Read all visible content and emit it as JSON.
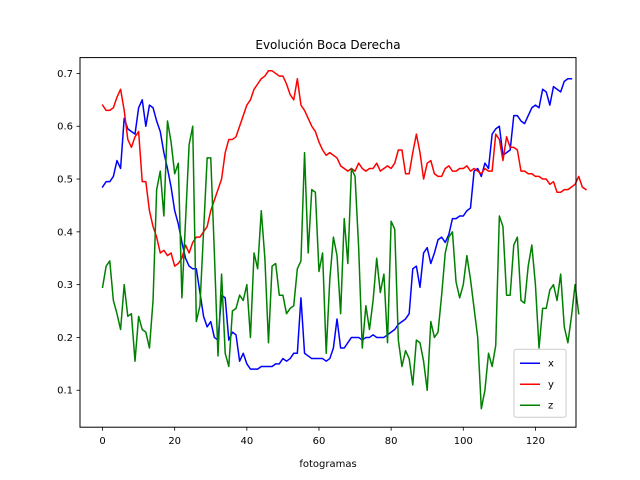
{
  "chart_data": {
    "type": "line",
    "title": "Evolución Boca Derecha",
    "xlabel": "fotogramas",
    "ylabel": "",
    "xlim": [
      -6.25,
      131.25
    ],
    "ylim": [
      0.03,
      0.73
    ],
    "x_ticks": [
      0,
      20,
      40,
      60,
      80,
      100,
      120
    ],
    "y_ticks": [
      0.1,
      0.2,
      0.3,
      0.4,
      0.5,
      0.6,
      0.7
    ],
    "grid": false,
    "legend_position": "lower-right",
    "series": [
      {
        "name": "x",
        "color": "#0000ff",
        "values": [
          0.485,
          0.495,
          0.495,
          0.505,
          0.535,
          0.52,
          0.615,
          0.595,
          0.59,
          0.585,
          0.635,
          0.65,
          0.6,
          0.64,
          0.635,
          0.61,
          0.59,
          0.55,
          0.52,
          0.485,
          0.44,
          0.415,
          0.38,
          0.35,
          0.335,
          0.33,
          0.33,
          0.285,
          0.24,
          0.22,
          0.23,
          0.2,
          0.195,
          0.28,
          0.275,
          0.195,
          0.21,
          0.205,
          0.155,
          0.17,
          0.15,
          0.14,
          0.14,
          0.14,
          0.145,
          0.145,
          0.145,
          0.145,
          0.15,
          0.15,
          0.16,
          0.155,
          0.16,
          0.17,
          0.17,
          0.275,
          0.17,
          0.165,
          0.16,
          0.16,
          0.16,
          0.16,
          0.155,
          0.16,
          0.18,
          0.235,
          0.18,
          0.18,
          0.19,
          0.2,
          0.2,
          0.2,
          0.195,
          0.2,
          0.2,
          0.205,
          0.2,
          0.2,
          0.2,
          0.205,
          0.21,
          0.215,
          0.225,
          0.23,
          0.235,
          0.245,
          0.33,
          0.335,
          0.295,
          0.36,
          0.37,
          0.34,
          0.36,
          0.385,
          0.39,
          0.38,
          0.395,
          0.425,
          0.425,
          0.43,
          0.43,
          0.44,
          0.445,
          0.515,
          0.52,
          0.505,
          0.53,
          0.52,
          0.585,
          0.595,
          0.6,
          0.545,
          0.55,
          0.555,
          0.62,
          0.62,
          0.61,
          0.605,
          0.62,
          0.635,
          0.64,
          0.635,
          0.67,
          0.665,
          0.64,
          0.675,
          0.67,
          0.665,
          0.685,
          0.69,
          0.69
        ]
      },
      {
        "name": "y",
        "color": "#ff0000",
        "values": [
          0.64,
          0.63,
          0.63,
          0.635,
          0.655,
          0.67,
          0.63,
          0.575,
          0.56,
          0.58,
          0.59,
          0.495,
          0.495,
          0.44,
          0.41,
          0.39,
          0.36,
          0.365,
          0.355,
          0.36,
          0.335,
          0.34,
          0.35,
          0.375,
          0.36,
          0.38,
          0.39,
          0.39,
          0.4,
          0.41,
          0.44,
          0.46,
          0.48,
          0.5,
          0.55,
          0.575,
          0.575,
          0.58,
          0.6,
          0.62,
          0.64,
          0.65,
          0.67,
          0.68,
          0.69,
          0.695,
          0.705,
          0.705,
          0.7,
          0.695,
          0.695,
          0.68,
          0.66,
          0.65,
          0.69,
          0.64,
          0.63,
          0.615,
          0.6,
          0.59,
          0.57,
          0.555,
          0.545,
          0.55,
          0.545,
          0.54,
          0.525,
          0.52,
          0.515,
          0.52,
          0.515,
          0.53,
          0.52,
          0.515,
          0.52,
          0.52,
          0.53,
          0.515,
          0.52,
          0.525,
          0.52,
          0.53,
          0.555,
          0.555,
          0.51,
          0.51,
          0.55,
          0.585,
          0.55,
          0.5,
          0.53,
          0.535,
          0.51,
          0.505,
          0.505,
          0.52,
          0.525,
          0.515,
          0.515,
          0.52,
          0.52,
          0.525,
          0.515,
          0.52,
          0.515,
          0.51,
          0.52,
          0.515,
          0.515,
          0.585,
          0.575,
          0.535,
          0.58,
          0.56,
          0.56,
          0.555,
          0.515,
          0.515,
          0.51,
          0.51,
          0.505,
          0.505,
          0.5,
          0.5,
          0.49,
          0.495,
          0.475,
          0.475,
          0.48,
          0.48,
          0.485,
          0.49,
          0.505,
          0.485,
          0.48
        ]
      },
      {
        "name": "z",
        "color": "#008000",
        "values": [
          0.295,
          0.335,
          0.345,
          0.27,
          0.245,
          0.215,
          0.3,
          0.24,
          0.245,
          0.155,
          0.24,
          0.215,
          0.21,
          0.18,
          0.27,
          0.48,
          0.515,
          0.43,
          0.61,
          0.57,
          0.51,
          0.53,
          0.275,
          0.42,
          0.565,
          0.6,
          0.23,
          0.26,
          0.4,
          0.54,
          0.54,
          0.36,
          0.165,
          0.32,
          0.17,
          0.145,
          0.25,
          0.255,
          0.28,
          0.27,
          0.3,
          0.2,
          0.36,
          0.33,
          0.44,
          0.35,
          0.19,
          0.335,
          0.34,
          0.28,
          0.28,
          0.245,
          0.255,
          0.26,
          0.33,
          0.345,
          0.55,
          0.36,
          0.48,
          0.475,
          0.325,
          0.36,
          0.17,
          0.31,
          0.39,
          0.355,
          0.245,
          0.425,
          0.34,
          0.52,
          0.505,
          0.37,
          0.18,
          0.26,
          0.215,
          0.27,
          0.35,
          0.285,
          0.32,
          0.19,
          0.42,
          0.405,
          0.195,
          0.145,
          0.175,
          0.16,
          0.11,
          0.195,
          0.19,
          0.155,
          0.1,
          0.23,
          0.2,
          0.21,
          0.28,
          0.36,
          0.39,
          0.4,
          0.305,
          0.275,
          0.3,
          0.355,
          0.31,
          0.255,
          0.2,
          0.065,
          0.1,
          0.17,
          0.145,
          0.185,
          0.43,
          0.41,
          0.28,
          0.28,
          0.375,
          0.39,
          0.27,
          0.265,
          0.335,
          0.375,
          0.3,
          0.18,
          0.255,
          0.255,
          0.29,
          0.3,
          0.27,
          0.32,
          0.22,
          0.19,
          0.24,
          0.3,
          0.245
        ]
      }
    ]
  }
}
